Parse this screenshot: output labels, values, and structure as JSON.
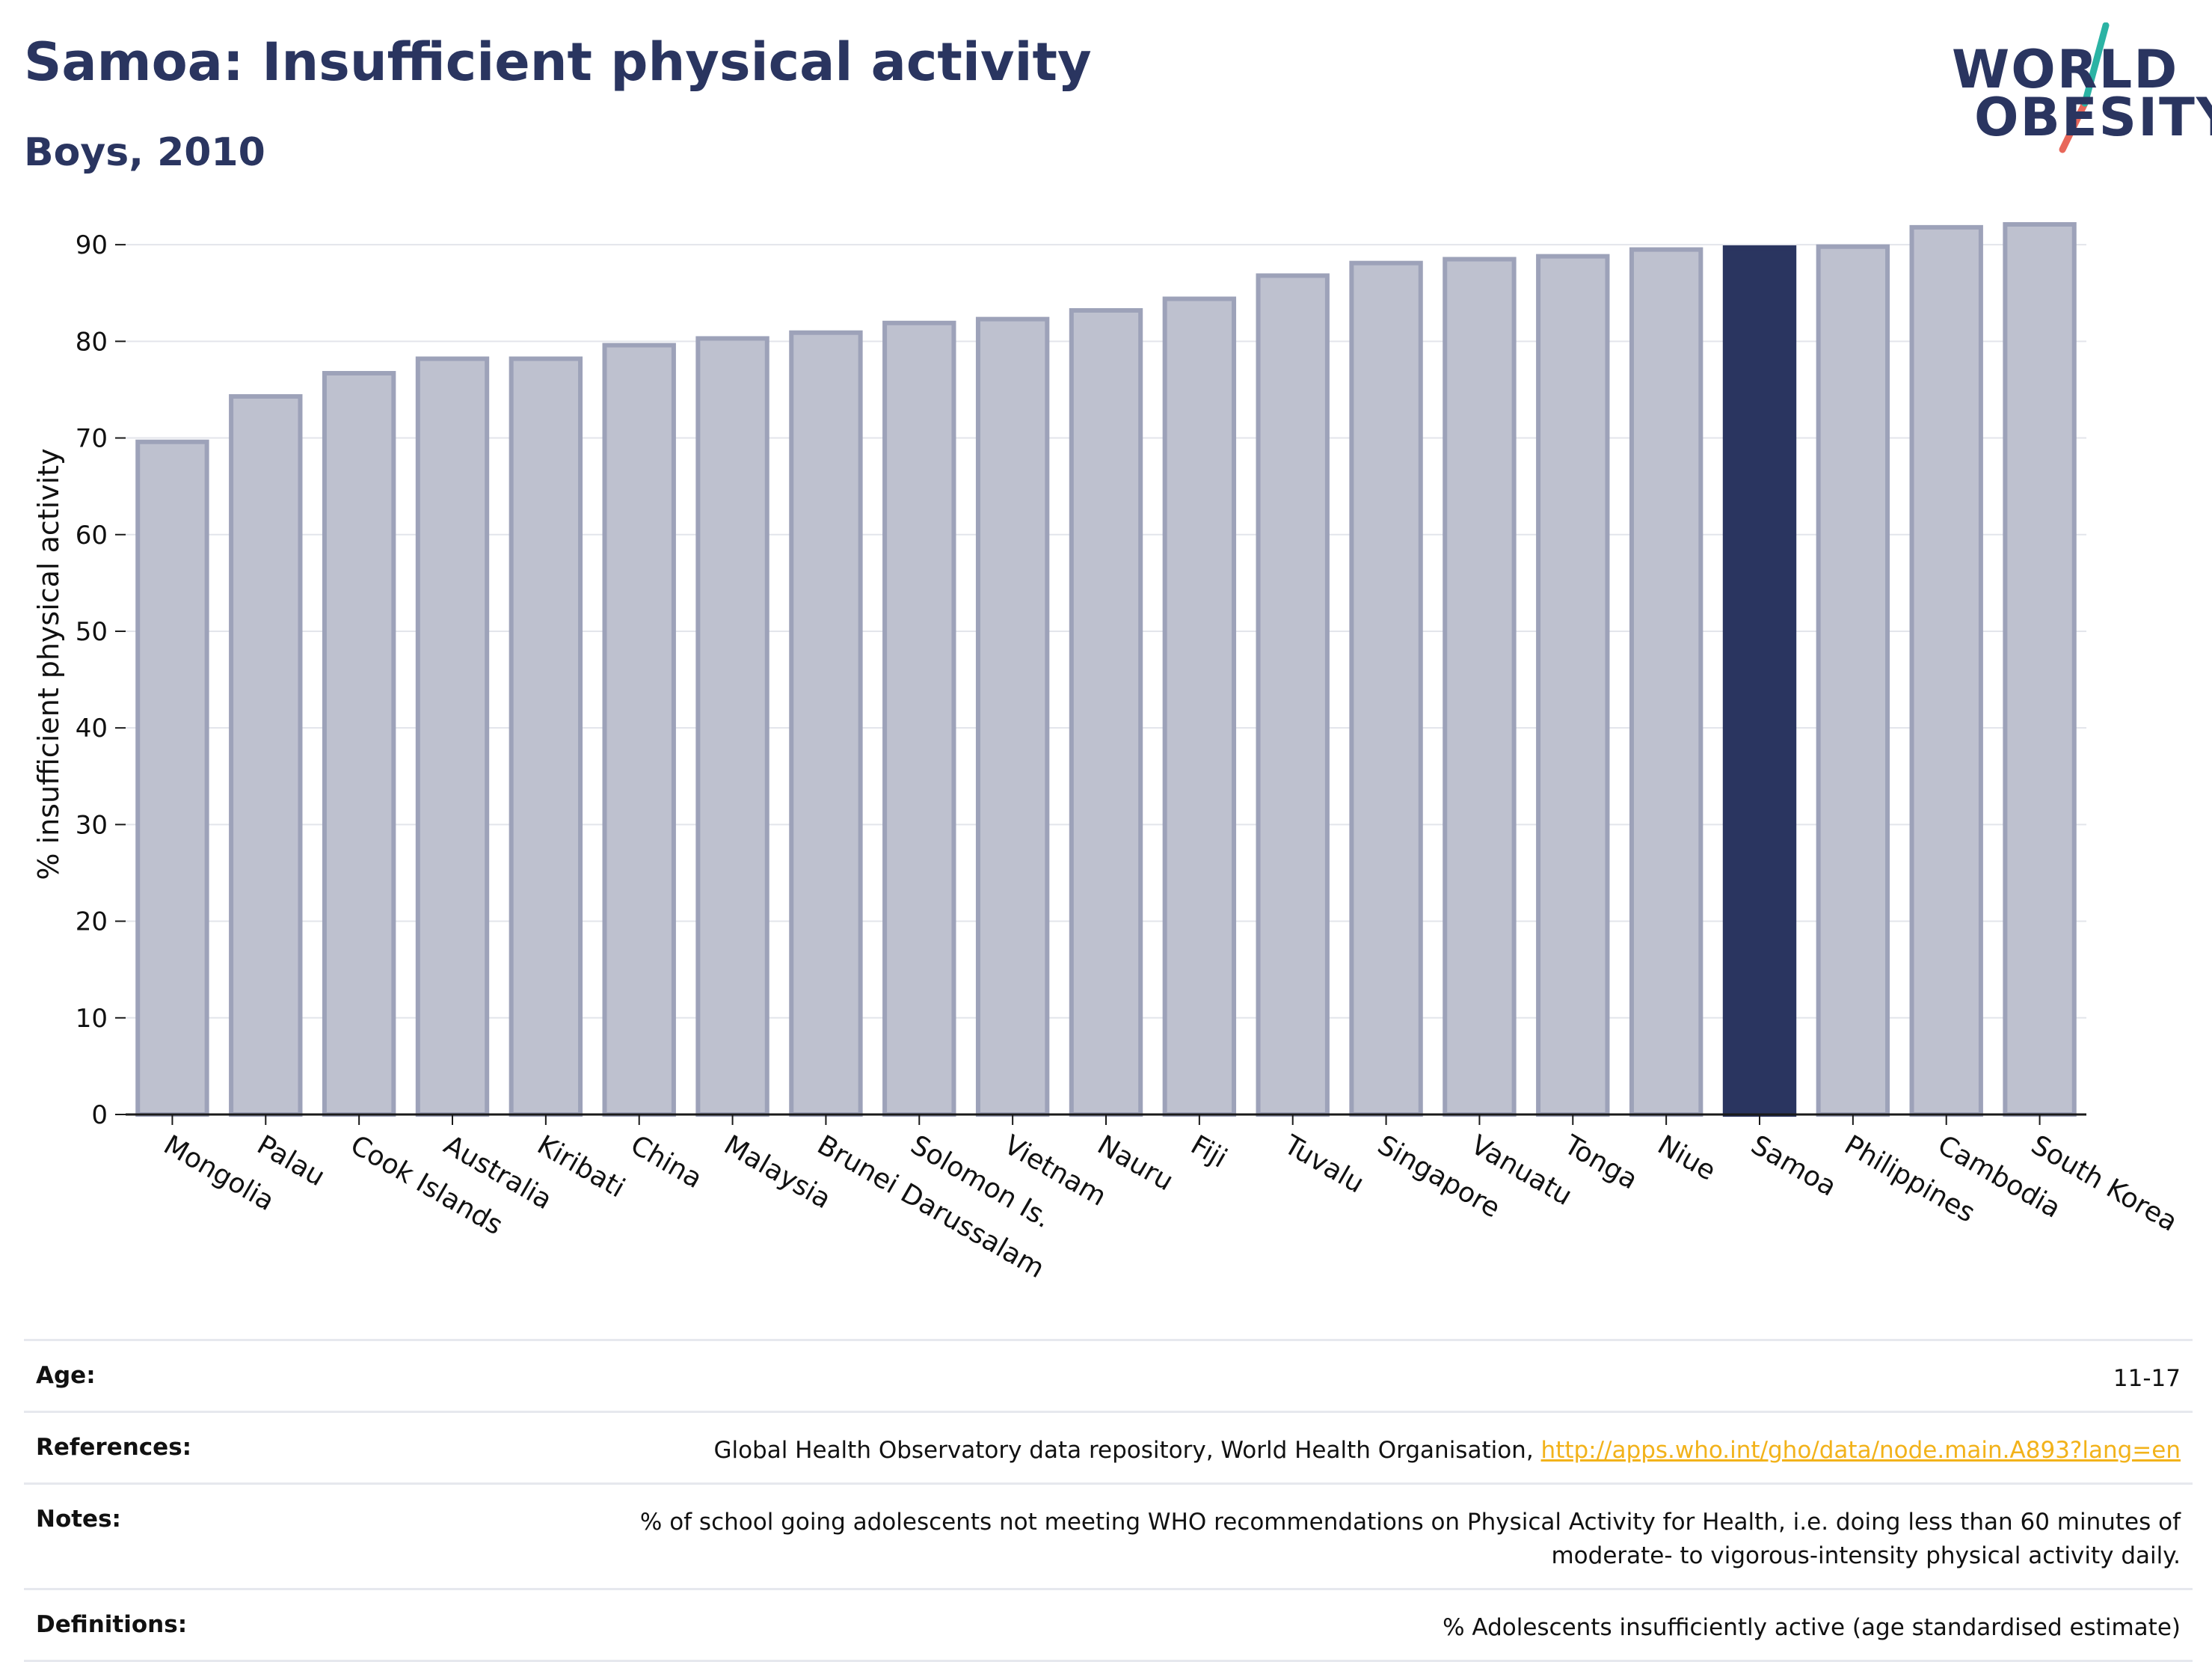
{
  "title": "Samoa: Insufficient physical activity",
  "subtitle": "Boys, 2010",
  "logo": {
    "line1": "WORLD",
    "line2": "OBESITY",
    "accent_colors": [
      "#2bb3a4",
      "#e8675a"
    ]
  },
  "chart_data": {
    "type": "bar",
    "categories": [
      "Mongolia",
      "Palau",
      "Cook Islands",
      "Australia",
      "Kiribati",
      "China",
      "Malaysia",
      "Brunei Darussalam",
      "Solomon Is.",
      "Vietnam",
      "Nauru",
      "Fiji",
      "Tuvalu",
      "Singapore",
      "Vanuatu",
      "Tonga",
      "Niue",
      "Samoa",
      "Philippines",
      "Cambodia",
      "South Korea"
    ],
    "values": [
      69.6,
      74.3,
      76.7,
      78.2,
      78.2,
      79.6,
      80.3,
      80.9,
      81.9,
      82.3,
      83.2,
      84.4,
      86.8,
      88.1,
      88.5,
      88.8,
      89.5,
      89.7,
      89.8,
      91.8,
      92.1
    ],
    "highlight": "Samoa",
    "ylabel": "% insufficient physical activity",
    "xlabel": "",
    "ylim": [
      0,
      92.1
    ],
    "yticks": [
      0,
      10,
      20,
      30,
      40,
      50,
      60,
      70,
      80,
      90
    ],
    "grid": true,
    "colors": {
      "bar": "#bec1cf",
      "bar_stroke": "#9da2b9",
      "highlight": "#2a3560",
      "grid": "#e3e5eb",
      "axis": "#1a1a1a"
    }
  },
  "info": {
    "age_label": "Age:",
    "age_value": "11-17",
    "references_label": "References:",
    "references_text": "Global Health Observatory data repository, World Health Organisation,",
    "references_link": "http://apps.who.int/gho/data/node.main.A893?lang=en",
    "notes_label": "Notes:",
    "notes_line1": "% of school going adolescents not meeting WHO recommendations on Physical Activity for Health, i.e. doing less than 60 minutes of",
    "notes_line2": "moderate- to vigorous-intensity physical activity daily.",
    "definitions_label": "Definitions:",
    "definitions_value": "% Adolescents insufficiently active (age standardised estimate)"
  }
}
